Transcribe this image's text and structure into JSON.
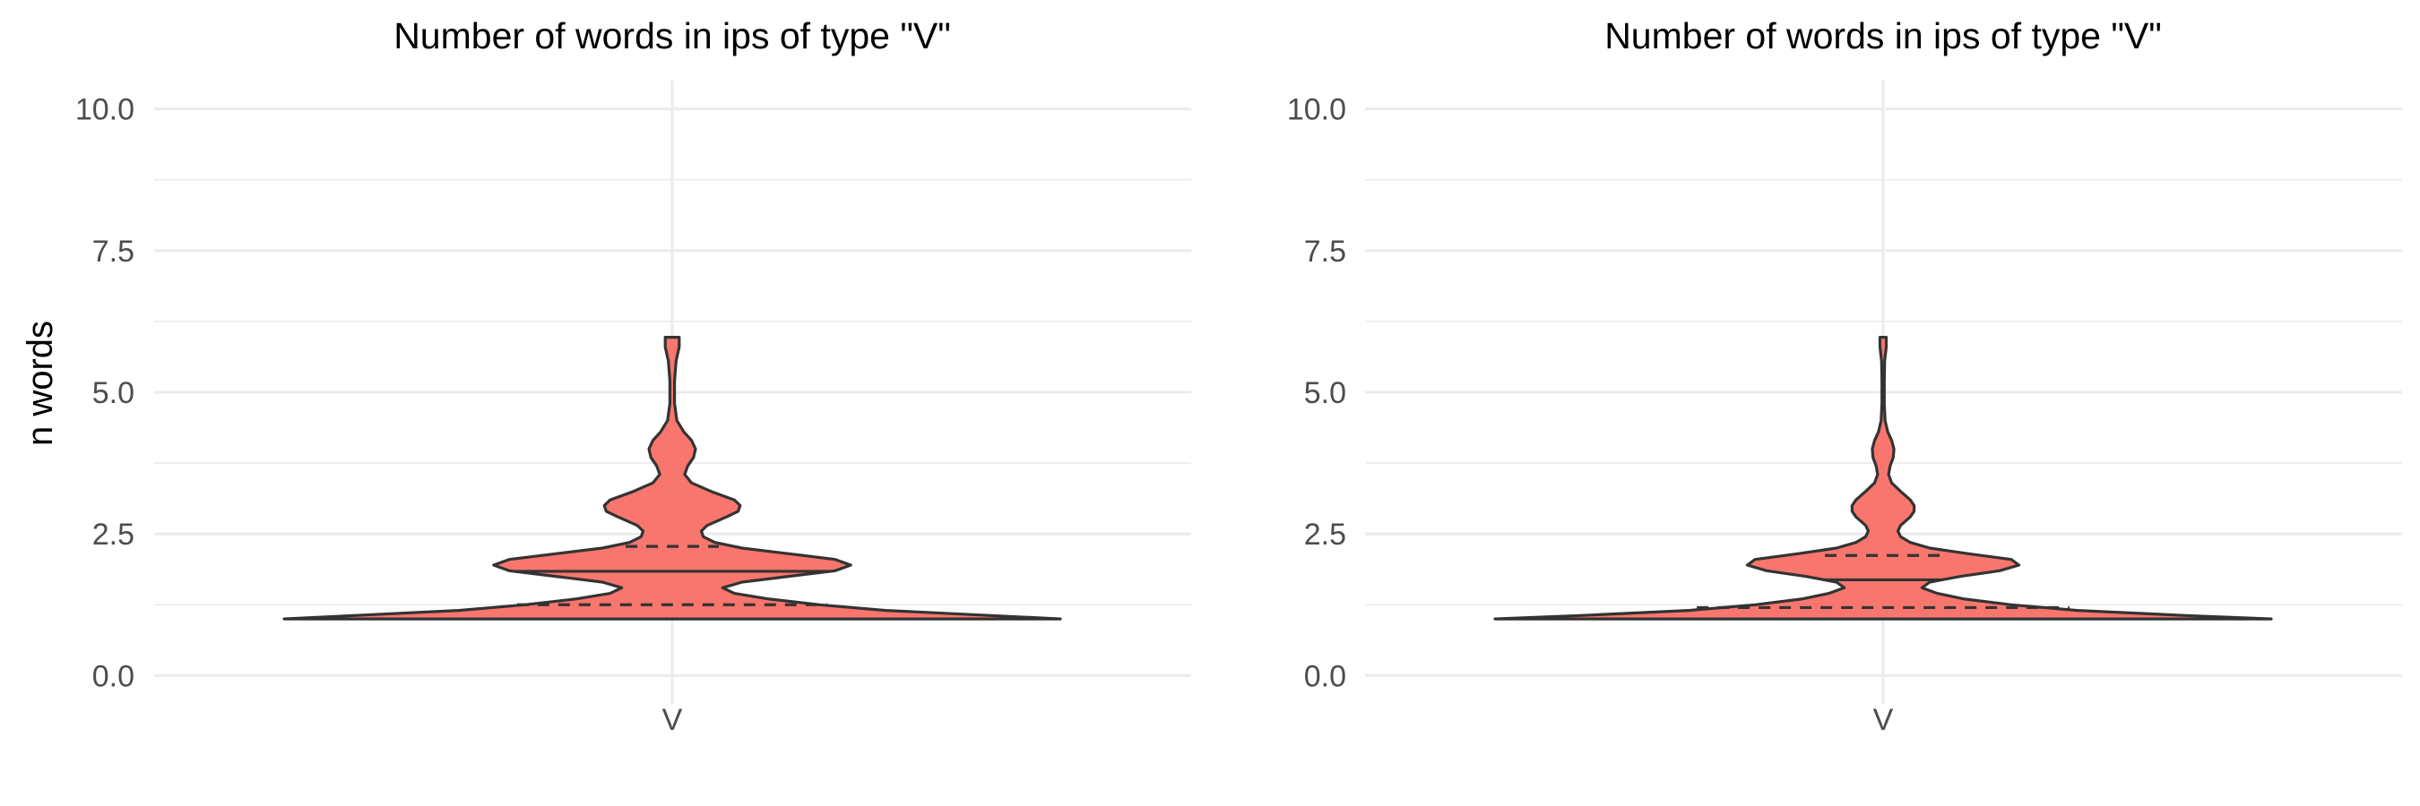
{
  "colors": {
    "violin_fill": "#F8766D",
    "outline": "#333333",
    "grid": "#EBEBEB",
    "tick_text": "#4D4D4D",
    "background": "#FFFFFF"
  },
  "chart_data": [
    {
      "type": "violin",
      "title": "Number of words in ips of type \"V\"",
      "ylabel": "n words",
      "xlabel": "",
      "categories": [
        "V"
      ],
      "ylim": [
        -0.5,
        10.5
      ],
      "yticks": [
        "0.0",
        "2.5",
        "5.0",
        "7.5",
        "10.0"
      ],
      "ytick_values": [
        0,
        2.5,
        5,
        7.5,
        10
      ],
      "grid": true,
      "legend": "none",
      "density_profile": [
        {
          "y": 1.0,
          "w": 1.0
        },
        {
          "y": 1.06,
          "w": 0.82
        },
        {
          "y": 1.15,
          "w": 0.55
        },
        {
          "y": 1.25,
          "w": 0.38
        },
        {
          "y": 1.35,
          "w": 0.25
        },
        {
          "y": 1.45,
          "w": 0.16
        },
        {
          "y": 1.55,
          "w": 0.13
        },
        {
          "y": 1.65,
          "w": 0.18
        },
        {
          "y": 1.75,
          "w": 0.3
        },
        {
          "y": 1.85,
          "w": 0.42
        },
        {
          "y": 1.95,
          "w": 0.46
        },
        {
          "y": 2.05,
          "w": 0.42
        },
        {
          "y": 2.15,
          "w": 0.3
        },
        {
          "y": 2.25,
          "w": 0.18
        },
        {
          "y": 2.35,
          "w": 0.11
        },
        {
          "y": 2.45,
          "w": 0.08
        },
        {
          "y": 2.55,
          "w": 0.075
        },
        {
          "y": 2.65,
          "w": 0.09
        },
        {
          "y": 2.8,
          "w": 0.14
        },
        {
          "y": 2.9,
          "w": 0.17
        },
        {
          "y": 3.0,
          "w": 0.175
        },
        {
          "y": 3.1,
          "w": 0.16
        },
        {
          "y": 3.25,
          "w": 0.1
        },
        {
          "y": 3.4,
          "w": 0.05
        },
        {
          "y": 3.55,
          "w": 0.032
        },
        {
          "y": 3.7,
          "w": 0.04
        },
        {
          "y": 3.85,
          "w": 0.055
        },
        {
          "y": 4.0,
          "w": 0.06
        },
        {
          "y": 4.15,
          "w": 0.05
        },
        {
          "y": 4.3,
          "w": 0.03
        },
        {
          "y": 4.5,
          "w": 0.012
        },
        {
          "y": 4.8,
          "w": 0.006
        },
        {
          "y": 5.2,
          "w": 0.006
        },
        {
          "y": 5.55,
          "w": 0.01
        },
        {
          "y": 5.8,
          "w": 0.018
        },
        {
          "y": 5.97,
          "w": 0.018
        }
      ],
      "median": 1.84,
      "quartiles": [
        1.25,
        2.28
      ],
      "quartile_halfwidths": [
        0.4,
        0.12
      ]
    },
    {
      "type": "violin",
      "title": "Number of words in ips of type \"V\"",
      "ylabel": "",
      "xlabel": "",
      "categories": [
        "V"
      ],
      "ylim": [
        -0.5,
        10.5
      ],
      "yticks": [
        "0.0",
        "2.5",
        "5.0",
        "7.5",
        "10.0"
      ],
      "ytick_values": [
        0,
        2.5,
        5,
        7.5,
        10
      ],
      "grid": true,
      "legend": "none",
      "density_profile": [
        {
          "y": 1.0,
          "w": 1.0
        },
        {
          "y": 1.06,
          "w": 0.78
        },
        {
          "y": 1.15,
          "w": 0.5
        },
        {
          "y": 1.25,
          "w": 0.33
        },
        {
          "y": 1.35,
          "w": 0.21
        },
        {
          "y": 1.45,
          "w": 0.14
        },
        {
          "y": 1.55,
          "w": 0.1
        },
        {
          "y": 1.65,
          "w": 0.12
        },
        {
          "y": 1.75,
          "w": 0.2
        },
        {
          "y": 1.85,
          "w": 0.3
        },
        {
          "y": 1.95,
          "w": 0.35
        },
        {
          "y": 2.05,
          "w": 0.33
        },
        {
          "y": 2.15,
          "w": 0.22
        },
        {
          "y": 2.25,
          "w": 0.12
        },
        {
          "y": 2.35,
          "w": 0.07
        },
        {
          "y": 2.45,
          "w": 0.045
        },
        {
          "y": 2.55,
          "w": 0.038
        },
        {
          "y": 2.65,
          "w": 0.045
        },
        {
          "y": 2.8,
          "w": 0.07
        },
        {
          "y": 2.9,
          "w": 0.08
        },
        {
          "y": 3.0,
          "w": 0.08
        },
        {
          "y": 3.1,
          "w": 0.07
        },
        {
          "y": 3.25,
          "w": 0.045
        },
        {
          "y": 3.4,
          "w": 0.022
        },
        {
          "y": 3.55,
          "w": 0.014
        },
        {
          "y": 3.7,
          "w": 0.018
        },
        {
          "y": 3.85,
          "w": 0.026
        },
        {
          "y": 4.0,
          "w": 0.028
        },
        {
          "y": 4.15,
          "w": 0.022
        },
        {
          "y": 4.3,
          "w": 0.012
        },
        {
          "y": 4.5,
          "w": 0.005
        },
        {
          "y": 4.8,
          "w": 0.003
        },
        {
          "y": 5.2,
          "w": 0.003
        },
        {
          "y": 5.55,
          "w": 0.004
        },
        {
          "y": 5.8,
          "w": 0.008
        },
        {
          "y": 5.97,
          "w": 0.008
        }
      ],
      "median": 1.69,
      "quartiles": [
        1.2,
        2.12
      ],
      "quartile_halfwidths": [
        0.48,
        0.15
      ]
    }
  ]
}
